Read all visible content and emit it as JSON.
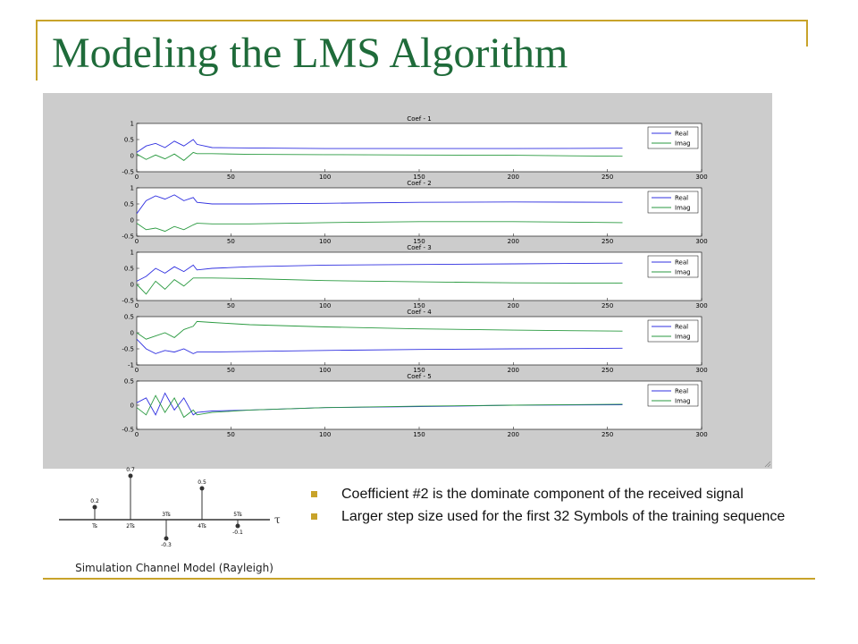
{
  "title": "Modeling the LMS Algorithm",
  "colors": {
    "accent": "#c8a32a",
    "title": "#1f6b3a",
    "real": "#3030e0",
    "imag": "#2a9a40",
    "figure_bg": "#cccccc"
  },
  "chart_data": [
    {
      "type": "line",
      "title": "Coef - 1",
      "ylim": [
        -0.5,
        1
      ],
      "yticks": [
        "1",
        "0.5",
        "0",
        "-0.5"
      ],
      "yvals": [
        1,
        0.5,
        0,
        -0.5
      ],
      "xlim": [
        0,
        300
      ],
      "xticks": [
        "0",
        "50",
        "100",
        "150",
        "200",
        "250",
        "300"
      ],
      "legend": [
        "Real",
        "Imag"
      ],
      "legend_position": "right",
      "steady": {
        "real": 0.22,
        "imag": 0.02
      },
      "series": [
        {
          "name": "Real",
          "x": [
            0,
            5,
            10,
            15,
            20,
            25,
            30,
            32,
            40,
            60,
            100,
            150,
            200,
            258
          ],
          "y": [
            0.1,
            0.3,
            0.38,
            0.25,
            0.45,
            0.3,
            0.5,
            0.35,
            0.25,
            0.24,
            0.22,
            0.22,
            0.22,
            0.23
          ]
        },
        {
          "name": "Imag",
          "x": [
            0,
            5,
            10,
            15,
            20,
            25,
            30,
            32,
            40,
            60,
            100,
            150,
            200,
            258
          ],
          "y": [
            0.05,
            -0.12,
            0.02,
            -0.1,
            0.05,
            -0.15,
            0.1,
            0.06,
            0.06,
            0.04,
            0.03,
            0.02,
            0.01,
            -0.02
          ]
        }
      ]
    },
    {
      "type": "line",
      "title": "Coef - 2",
      "ylim": [
        -0.5,
        1
      ],
      "yticks": [
        "1",
        "0.5",
        "0",
        "-0.5"
      ],
      "yvals": [
        1,
        0.5,
        0,
        -0.5
      ],
      "xlim": [
        0,
        300
      ],
      "xticks": [
        "0",
        "50",
        "100",
        "150",
        "200",
        "250",
        "300"
      ],
      "legend": [
        "Real",
        "Imag"
      ],
      "legend_position": "right",
      "series": [
        {
          "name": "Real",
          "x": [
            0,
            5,
            10,
            15,
            20,
            25,
            30,
            32,
            40,
            60,
            100,
            150,
            200,
            258
          ],
          "y": [
            0.2,
            0.6,
            0.75,
            0.65,
            0.78,
            0.6,
            0.7,
            0.55,
            0.5,
            0.5,
            0.52,
            0.55,
            0.56,
            0.55
          ]
        },
        {
          "name": "Imag",
          "x": [
            0,
            5,
            10,
            15,
            20,
            25,
            30,
            32,
            40,
            60,
            100,
            150,
            200,
            258
          ],
          "y": [
            -0.1,
            -0.3,
            -0.25,
            -0.35,
            -0.2,
            -0.3,
            -0.15,
            -0.1,
            -0.12,
            -0.12,
            -0.08,
            -0.05,
            -0.05,
            -0.08
          ]
        }
      ]
    },
    {
      "type": "line",
      "title": "Coef - 3",
      "ylim": [
        -0.5,
        1
      ],
      "yticks": [
        "1",
        "0.5",
        "0",
        "-0.5"
      ],
      "yvals": [
        1,
        0.5,
        0,
        -0.5
      ],
      "xlim": [
        0,
        300
      ],
      "xticks": [
        "0",
        "50",
        "100",
        "150",
        "200",
        "250",
        "300"
      ],
      "legend": [
        "Real",
        "Imag"
      ],
      "legend_position": "right",
      "series": [
        {
          "name": "Real",
          "x": [
            0,
            5,
            10,
            15,
            20,
            25,
            30,
            32,
            40,
            60,
            100,
            150,
            200,
            258
          ],
          "y": [
            0.1,
            0.25,
            0.5,
            0.35,
            0.55,
            0.4,
            0.6,
            0.45,
            0.5,
            0.55,
            0.6,
            0.62,
            0.64,
            0.66
          ]
        },
        {
          "name": "Imag",
          "x": [
            0,
            5,
            10,
            15,
            20,
            25,
            30,
            32,
            40,
            60,
            100,
            150,
            200,
            258
          ],
          "y": [
            0.0,
            -0.3,
            0.1,
            -0.15,
            0.15,
            -0.05,
            0.2,
            0.2,
            0.2,
            0.18,
            0.12,
            0.08,
            0.05,
            0.04
          ]
        }
      ]
    },
    {
      "type": "line",
      "title": "Coef - 4",
      "ylim": [
        -1,
        0.5
      ],
      "yticks": [
        "0.5",
        "0",
        "-0.5",
        "-1"
      ],
      "yvals": [
        0.5,
        0,
        -0.5,
        -1
      ],
      "xlim": [
        0,
        300
      ],
      "xticks": [
        "0",
        "50",
        "100",
        "150",
        "200",
        "250",
        "300"
      ],
      "legend": [
        "Real",
        "Imag"
      ],
      "legend_position": "right",
      "series": [
        {
          "name": "Real",
          "x": [
            0,
            5,
            10,
            15,
            20,
            25,
            30,
            32,
            40,
            60,
            100,
            150,
            200,
            258
          ],
          "y": [
            -0.2,
            -0.5,
            -0.65,
            -0.55,
            -0.6,
            -0.5,
            -0.65,
            -0.6,
            -0.6,
            -0.58,
            -0.55,
            -0.52,
            -0.5,
            -0.48
          ]
        },
        {
          "name": "Imag",
          "x": [
            0,
            5,
            10,
            15,
            20,
            25,
            30,
            32,
            40,
            60,
            100,
            150,
            200,
            258
          ],
          "y": [
            0.0,
            -0.2,
            -0.1,
            0.0,
            -0.15,
            0.1,
            0.2,
            0.35,
            0.32,
            0.25,
            0.18,
            0.12,
            0.08,
            0.05
          ]
        }
      ]
    },
    {
      "type": "line",
      "title": "Coef - 5",
      "ylim": [
        -0.5,
        0.5
      ],
      "yticks": [
        "0.5",
        "0",
        "-0.5"
      ],
      "yvals": [
        0.5,
        0,
        -0.5
      ],
      "xlim": [
        0,
        300
      ],
      "xticks": [
        "0",
        "50",
        "100",
        "150",
        "200",
        "250",
        "300"
      ],
      "legend": [
        "Real",
        "Imag"
      ],
      "legend_position": "right",
      "series": [
        {
          "name": "Real",
          "x": [
            0,
            5,
            10,
            15,
            20,
            25,
            30,
            32,
            40,
            60,
            100,
            150,
            200,
            258
          ],
          "y": [
            0.05,
            0.15,
            -0.2,
            0.25,
            -0.1,
            0.15,
            -0.2,
            -0.15,
            -0.12,
            -0.1,
            -0.05,
            -0.03,
            0.0,
            0.01
          ]
        },
        {
          "name": "Imag",
          "x": [
            0,
            5,
            10,
            15,
            20,
            25,
            30,
            32,
            40,
            60,
            100,
            150,
            200,
            258
          ],
          "y": [
            -0.05,
            -0.2,
            0.2,
            -0.15,
            0.15,
            -0.25,
            -0.1,
            -0.2,
            -0.15,
            -0.1,
            -0.05,
            -0.02,
            0.0,
            0.02
          ]
        }
      ]
    }
  ],
  "channel_model": {
    "caption": "Simulation Channel Model (Rayleigh)",
    "axis_symbol": "τ",
    "taps": [
      {
        "value": "0.2",
        "amp": 0.2,
        "label": "Ts",
        "pos": 1
      },
      {
        "value": "0.7",
        "amp": 0.7,
        "label": "2Ts",
        "pos": 2
      },
      {
        "value": "-0.3",
        "amp": -0.3,
        "label": "3Ts",
        "pos": 3
      },
      {
        "value": "0.5",
        "amp": 0.5,
        "label": "4Ts",
        "pos": 4
      },
      {
        "value": "-0.1",
        "amp": -0.1,
        "label": "5Ts",
        "pos": 5
      }
    ]
  },
  "bullets": [
    "Coefficient #2 is the dominate component of the received signal",
    "Larger step size used for the first 32 Symbols of the training sequence"
  ]
}
